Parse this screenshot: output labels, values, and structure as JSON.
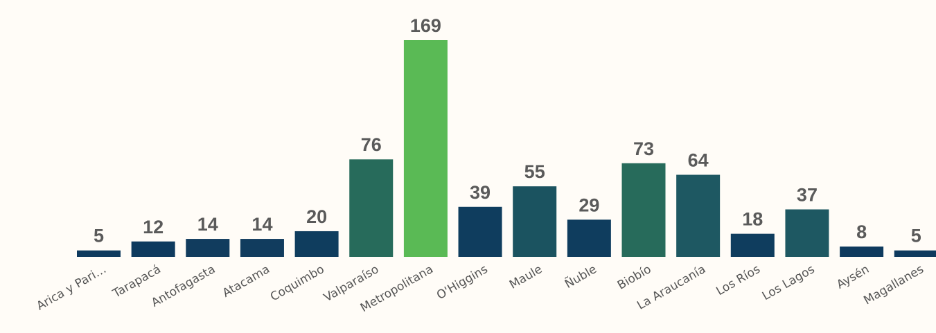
{
  "chart_data": {
    "type": "bar",
    "categories": [
      "Arica y Pari…",
      "Tarapacá",
      "Antofagasta",
      "Atacama",
      "Coquimbo",
      "Valparaíso",
      "Metropolitana",
      "O'Higgins",
      "Maule",
      "Ñuble",
      "Biobío",
      "La Araucanía",
      "Los Ríos",
      "Los Lagos",
      "Aysén",
      "Magallanes"
    ],
    "values": [
      5,
      12,
      14,
      14,
      20,
      76,
      169,
      39,
      55,
      29,
      73,
      64,
      18,
      37,
      8,
      5
    ],
    "colors": [
      "#0e3a5e",
      "#0e3a5e",
      "#113c5e",
      "#113c5e",
      "#0f3d5e",
      "#276b5b",
      "#5aba55",
      "#0f3d5e",
      "#1b5360",
      "#0f3d5e",
      "#276b5b",
      "#1e5862",
      "#0f3d5e",
      "#1e5862",
      "#0e3a5e",
      "#0e3a5e"
    ]
  }
}
